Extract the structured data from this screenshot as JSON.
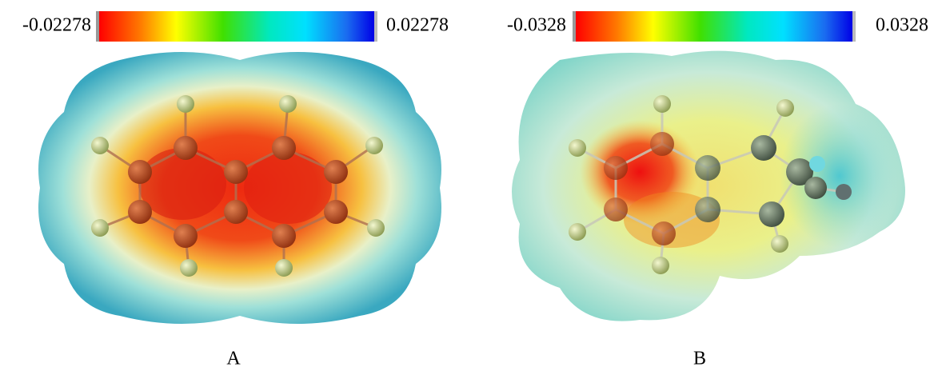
{
  "panels": [
    {
      "label": "A",
      "colorbar": {
        "min": "-0.02278",
        "max": "0.02278"
      }
    },
    {
      "label": "B",
      "colorbar": {
        "min": "-0.0328",
        "max": "0.0328"
      }
    }
  ]
}
